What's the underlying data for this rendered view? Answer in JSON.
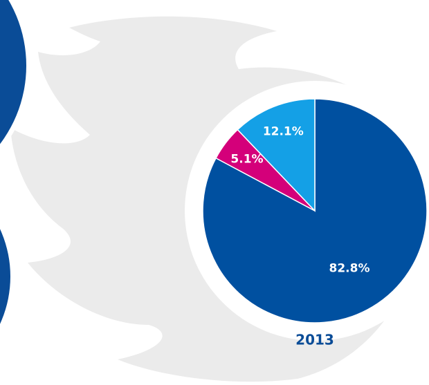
{
  "chart_data": {
    "type": "pie",
    "title": "2013",
    "values": [
      82.8,
      5.1,
      12.1
    ],
    "value_labels": [
      "82.8%",
      "5.1%",
      "12.1%"
    ],
    "colors": [
      "#0050a0",
      "#d4007a",
      "#14a0e6"
    ]
  }
}
